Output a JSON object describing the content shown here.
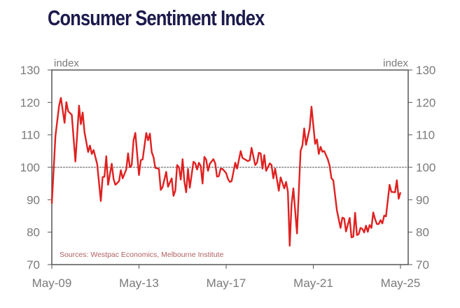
{
  "chart_data": {
    "type": "line",
    "title": "Consumer Sentiment Index",
    "left_unit": "index",
    "right_unit": "index",
    "source": "Sources: Westpac Economics, Melbourne Institute",
    "ylim": [
      70,
      130
    ],
    "yticks": [
      70,
      80,
      90,
      100,
      110,
      120,
      130
    ],
    "ytick_labels": [
      "70",
      "80",
      "90",
      "100",
      "110",
      "120",
      "130"
    ],
    "xticks": [
      "2009-05",
      "2013-05",
      "2017-05",
      "2021-05",
      "2025-05"
    ],
    "xtick_labels": [
      "May-09",
      "May-13",
      "May-17",
      "May-21",
      "May-25"
    ],
    "reference_line": 100,
    "grid": false,
    "line_color": "#e02020",
    "series": [
      {
        "x": [
          "2009-05",
          "2009-07",
          "2009-09",
          "2009-10",
          "2009-12",
          "2010-01",
          "2010-02",
          "2010-04",
          "2010-06",
          "2010-08",
          "2010-09",
          "2010-10",
          "2010-11",
          "2011-01",
          "2011-02",
          "2011-03",
          "2011-04",
          "2011-06",
          "2011-08",
          "2011-09",
          "2011-10",
          "2011-11",
          "2011-12",
          "2012-02",
          "2012-03",
          "2012-04",
          "2012-06",
          "2012-07",
          "2012-08",
          "2012-10",
          "2012-11",
          "2012-12",
          "2013-01",
          "2013-02",
          "2013-03",
          "2013-05",
          "2013-06",
          "2013-07",
          "2013-09",
          "2013-10",
          "2013-11",
          "2013-12",
          "2014-01",
          "2014-02",
          "2014-04",
          "2014-05",
          "2014-06",
          "2014-08",
          "2014-09",
          "2014-11",
          "2014-12",
          "2015-01",
          "2015-02",
          "2015-03",
          "2015-04",
          "2015-05",
          "2015-06",
          "2015-07",
          "2015-08",
          "2015-09",
          "2015-11",
          "2015-12",
          "2016-01",
          "2016-02",
          "2016-03",
          "2016-04",
          "2016-05",
          "2016-06",
          "2016-07",
          "2016-08",
          "2016-10",
          "2016-11",
          "2016-12",
          "2017-01",
          "2017-02",
          "2017-03",
          "2017-05",
          "2017-06",
          "2017-07",
          "2017-08",
          "2017-10",
          "2017-11",
          "2018-01",
          "2018-02",
          "2018-05",
          "2018-06",
          "2018-07",
          "2018-09",
          "2018-10",
          "2018-11",
          "2018-12",
          "2019-01",
          "2019-02",
          "2019-03",
          "2019-05",
          "2019-06",
          "2019-07",
          "2019-08",
          "2019-10",
          "2019-11",
          "2020-01",
          "2020-02",
          "2020-03",
          "2020-04",
          "2020-05",
          "2020-06",
          "2020-08",
          "2020-10",
          "2020-11",
          "2020-12",
          "2021-01",
          "2021-03",
          "2021-04",
          "2021-06",
          "2021-07",
          "2021-08",
          "2021-09",
          "2021-10",
          "2021-11",
          "2022-01",
          "2022-02",
          "2022-03",
          "2022-04",
          "2022-06",
          "2022-08",
          "2022-09",
          "2022-10",
          "2022-11",
          "2023-01",
          "2023-02",
          "2023-03",
          "2023-04",
          "2023-05",
          "2023-06",
          "2023-07",
          "2023-08",
          "2023-09",
          "2023-10",
          "2023-11",
          "2023-12",
          "2024-01",
          "2024-02",
          "2024-03",
          "2024-04",
          "2024-05",
          "2024-06",
          "2024-07",
          "2024-08",
          "2024-09",
          "2024-11",
          "2024-12",
          "2025-02",
          "2025-03",
          "2025-04",
          "2025-05"
        ],
        "y": [
          88.8,
          109.7,
          119,
          121.4,
          113.7,
          120.1,
          117.3,
          116.2,
          101.8,
          119,
          113.3,
          116.9,
          110.8,
          104.7,
          106.7,
          104.1,
          105.3,
          101,
          89.6,
          97,
          97.1,
          103.4,
          94.6,
          101.1,
          96.4,
          94.6,
          95.7,
          99.1,
          96.6,
          99.3,
          104.3,
          100,
          100.7,
          108.3,
          110.6,
          97.6,
          102.2,
          102.4,
          110.6,
          108.3,
          110.4,
          104.7,
          103.1,
          99.8,
          99.5,
          93,
          93.9,
          98.6,
          94,
          96.6,
          91.2,
          92.8,
          100.7,
          100,
          96.2,
          102.5,
          95.7,
          92.3,
          99.5,
          93.7,
          101.7,
          101.2,
          99.3,
          101.4,
          100.4,
          95,
          103.2,
          102.4,
          98.9,
          101.1,
          102.5,
          101.2,
          97.1,
          97.3,
          99.6,
          99.5,
          98.2,
          96.4,
          95.5,
          95.7,
          101.4,
          99.6,
          105,
          102.9,
          101.9,
          102.2,
          106,
          100.7,
          101.4,
          104.5,
          104.3,
          99.6,
          103.8,
          98.9,
          101.2,
          100.7,
          96.6,
          99.6,
          92.8,
          96.9,
          93.5,
          95.5,
          92.4,
          75.8,
          88.5,
          93.5,
          79.6,
          105,
          106.7,
          112,
          106.9,
          112,
          118.7,
          107.2,
          108.6,
          104.1,
          106.3,
          104.8,
          105,
          102.4,
          100.5,
          96.6,
          96,
          86.7,
          81.3,
          84.5,
          84.2,
          80.2,
          84.4,
          78.4,
          78.6,
          86,
          79.1,
          79.4,
          81.3,
          81,
          79.9,
          82,
          80.1,
          82.2,
          81.3,
          86.1,
          84,
          82.5,
          82.5,
          83.7,
          82.7,
          85.1,
          84.9,
          94.6,
          92.4,
          92.3,
          96,
          90.3,
          92.3
        ]
      }
    ]
  }
}
